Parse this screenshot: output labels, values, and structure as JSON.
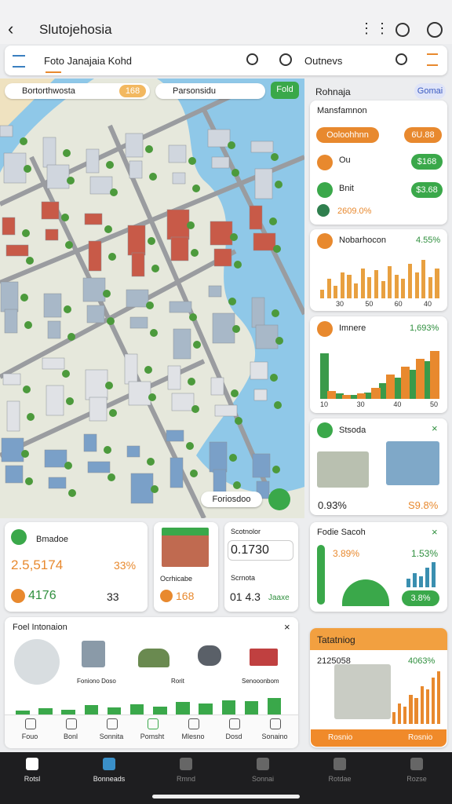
{
  "header": {
    "title": "Slutojehosia"
  },
  "search": {
    "query": "Foto Janajaia Kohd",
    "secondary": "Outnevs"
  },
  "map": {
    "chips": [
      "Bortorthwosta",
      "168",
      "Parsonsidu",
      "Fold"
    ],
    "footer_chip": "Foriosdoo"
  },
  "side": {
    "title": "Rohnaja",
    "badge": "Gomai",
    "summary": {
      "title": "Mansfamnon",
      "pill": "Ooloohhnn",
      "pill_value": "6U.88",
      "rows": [
        {
          "label": "Ou",
          "value": "$168"
        },
        {
          "label": "Bnit",
          "value": "$3.68"
        }
      ],
      "footer": "2609.0%"
    },
    "chart1": {
      "title": "Nobarhocon",
      "value": "4.55%",
      "ylim": [
        0,
        100
      ],
      "color": "#e8a040",
      "values": [
        20,
        45,
        30,
        60,
        55,
        35,
        70,
        50,
        65,
        40,
        75,
        55,
        45,
        80,
        60,
        90,
        50,
        70
      ],
      "xlabels": [
        "30",
        "50",
        "60",
        "40"
      ]
    },
    "chart2": {
      "title": "Imnere",
      "value": "1,693%",
      "ylim": [
        0,
        100
      ],
      "series": [
        {
          "color": "#3a9a4a",
          "values": [
            85,
            10,
            8,
            12,
            30,
            40,
            55,
            70
          ]
        },
        {
          "color": "#e8892e",
          "values": [
            15,
            8,
            10,
            20,
            45,
            60,
            75,
            90
          ]
        }
      ],
      "xlabels": [
        "10",
        "30",
        "40",
        "50"
      ]
    },
    "stock": {
      "title": "Stsoda",
      "left": "0.93%",
      "right": "S9.8%"
    },
    "fodie": {
      "title": "Fodie Sacoh",
      "left": "3.89%",
      "right": "1.53%",
      "badge": "3.8%",
      "ylim": [
        0,
        100
      ],
      "color": "#3a8fb0",
      "values": [
        30,
        50,
        40,
        70,
        90
      ]
    },
    "promo": {
      "title": "Tatatniog",
      "left": "2125058",
      "right": "4063%",
      "ylim": [
        0,
        100
      ],
      "color": "#e8892e",
      "values": [
        20,
        35,
        30,
        50,
        45,
        65,
        60,
        80,
        90
      ],
      "buttons": [
        "Rosnio",
        "Rosnio"
      ]
    }
  },
  "cards": [
    {
      "title": "Bmadoe",
      "value": "2.5,5174",
      "value_b": "33%",
      "value2": "4176",
      "value2_b": "33"
    },
    {
      "title": "Ocrhicabe",
      "value": "168"
    },
    {
      "title": "Scotnolor",
      "value": "0.1730",
      "label": "Scrnota",
      "value2": "01 4.3",
      "value2_b": "Jaaxe"
    }
  ],
  "panel": {
    "title": "Foel Intonaion",
    "labels": [
      "Foniono Doso",
      "Rorit",
      "Senooonbom"
    ],
    "ylim": [
      0,
      100
    ],
    "color": "#3aa84a",
    "values": [
      20,
      30,
      25,
      45,
      35,
      50,
      40,
      60,
      55,
      70,
      65,
      80
    ],
    "tabs": [
      "Fouo",
      "Bonl",
      "Sonnita",
      "Pomsht",
      "Mlesno",
      "Dosd",
      "Sonaino"
    ]
  },
  "nav": [
    "Rotsl",
    "Bonneads",
    "Rmnd",
    "Sonnai",
    "Rotdae",
    "Rozse"
  ]
}
